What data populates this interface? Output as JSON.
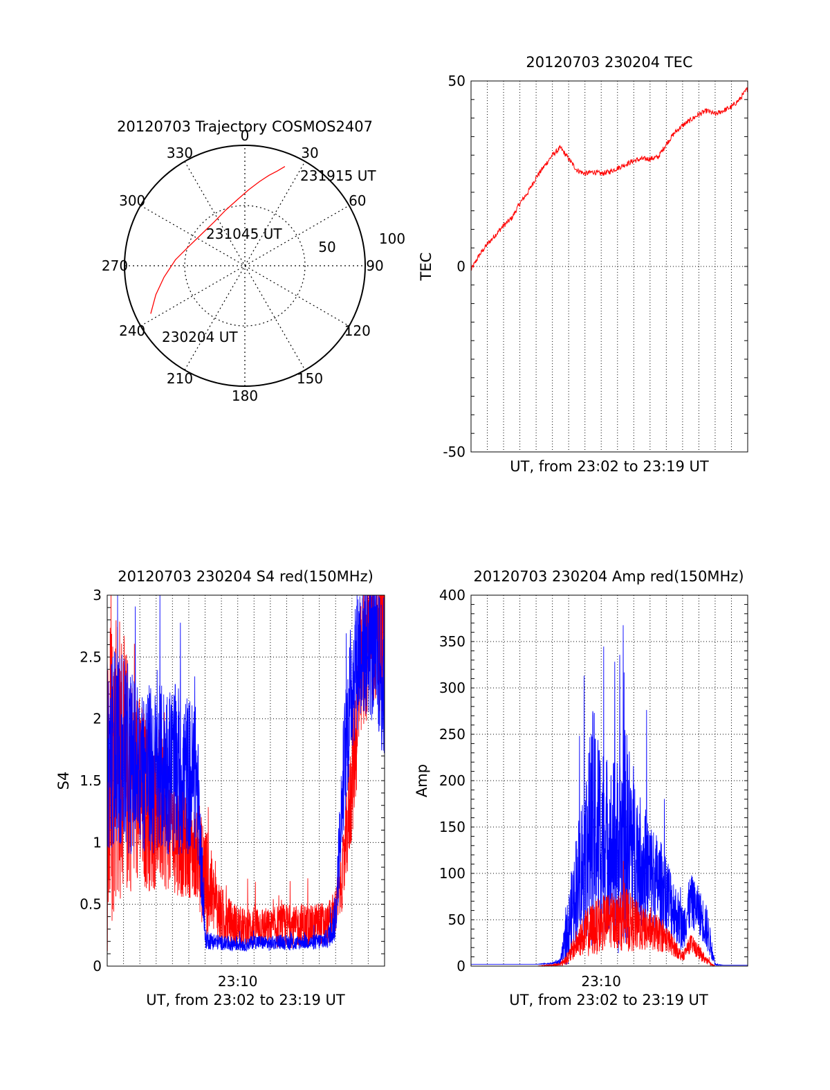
{
  "colors": {
    "red": "#ff0000",
    "blue": "#0000ff",
    "grid": "#000000"
  },
  "chart_data": [
    {
      "type": "polar",
      "title": "20120703 Trajectory COSMOS2407",
      "azimuth_labels": [
        "0",
        "30",
        "60",
        "90",
        "120",
        "150",
        "180",
        "210",
        "240",
        "270",
        "300",
        "330"
      ],
      "radial_labels": [
        "50",
        "100"
      ],
      "rmax": 90,
      "trajectory": {
        "color": "red",
        "points_az_r": [
          [
            243,
            79
          ],
          [
            252,
            70
          ],
          [
            262,
            61
          ],
          [
            275,
            52
          ],
          [
            290,
            44
          ],
          [
            307,
            40
          ],
          [
            325,
            40
          ],
          [
            341,
            44
          ],
          [
            354,
            50
          ],
          [
            3,
            57
          ],
          [
            10,
            64
          ],
          [
            15,
            70
          ],
          [
            19,
            75
          ],
          [
            22,
            80
          ]
        ]
      },
      "annotations": [
        "231915 UT",
        "231045 UT",
        "230204 UT"
      ]
    },
    {
      "type": "line",
      "title": "20120703 230204 TEC",
      "xlabel": "UT, from 23:02 to 23:19 UT",
      "ylabel": "TEC",
      "ylim": [
        -50,
        50
      ],
      "yticks": [
        "50",
        "0",
        "-50"
      ],
      "xlim_min": [
        0,
        17
      ],
      "series": [
        {
          "color": "red",
          "x": [
            0,
            0.5,
            1,
            1.5,
            2,
            2.5,
            3,
            3.5,
            4,
            4.5,
            5,
            5.5,
            6,
            6.5,
            7,
            7.5,
            8,
            8.5,
            9,
            9.5,
            10,
            10.5,
            11,
            11.5,
            12,
            12.5,
            13,
            13.5,
            14,
            14.5,
            15,
            15.5,
            16,
            16.5,
            17
          ],
          "y": [
            -1,
            3,
            6,
            8.5,
            11,
            13,
            17,
            20,
            24,
            27,
            30,
            32,
            29,
            26,
            25,
            25.5,
            25,
            25.5,
            26.5,
            27.5,
            28.5,
            29,
            29,
            29.5,
            33,
            36,
            38,
            39.5,
            41,
            42,
            41,
            42,
            43,
            45,
            48
          ]
        }
      ]
    },
    {
      "type": "line",
      "title": "20120703 230204 S4 red(150MHz)",
      "xlabel": "UT, from 23:02 to 23:19 UT",
      "ylabel": "S4",
      "ylim": [
        0,
        3
      ],
      "yticks": [
        "3",
        "2.5",
        "2",
        "1.5",
        "1",
        "0.5",
        "0"
      ],
      "xtick_label": "23:10",
      "xtick_value": 8,
      "xlim_min": [
        0,
        17
      ],
      "series": [
        {
          "color": "red",
          "x": [
            0,
            0.5,
            1,
            1.5,
            2,
            2.5,
            3,
            3.5,
            4,
            4.5,
            5,
            5.5,
            6,
            6.5,
            7,
            7.5,
            8,
            8.5,
            9,
            9.5,
            10,
            10.5,
            11,
            11.5,
            12,
            12.5,
            13,
            13.5,
            14,
            14.5,
            15,
            15.5,
            16,
            16.5,
            17
          ],
          "y": [
            1.4,
            1.8,
            1.6,
            1.5,
            1.4,
            1.3,
            1.3,
            1.2,
            1.1,
            1.0,
            0.95,
            0.9,
            0.7,
            0.55,
            0.4,
            0.35,
            0.32,
            0.3,
            0.33,
            0.32,
            0.3,
            0.32,
            0.33,
            0.31,
            0.34,
            0.32,
            0.35,
            0.33,
            0.45,
            0.8,
            1.5,
            2.3,
            2.7,
            2.8,
            2.7
          ],
          "spread": [
            1.4,
            1.3,
            1.1,
            0.9,
            0.8,
            0.7,
            0.7,
            0.6,
            0.5,
            0.45,
            0.4,
            0.35,
            0.5,
            0.3,
            0.25,
            0.2,
            0.18,
            0.16,
            0.18,
            0.17,
            0.16,
            0.18,
            0.18,
            0.17,
            0.18,
            0.17,
            0.18,
            0.17,
            0.2,
            0.3,
            0.5,
            0.6,
            0.7,
            0.7,
            0.7
          ]
        },
        {
          "color": "blue",
          "x": [
            0,
            0.5,
            1,
            1.5,
            2,
            2.5,
            3,
            3.5,
            4,
            4.5,
            5,
            5.5,
            6,
            6.5,
            7,
            7.5,
            8,
            8.5,
            9,
            9.5,
            10,
            10.5,
            11,
            11.5,
            12,
            12.5,
            13,
            13.5,
            14,
            14.5,
            15,
            15.5,
            16,
            16.5,
            17
          ],
          "y": [
            1.7,
            1.8,
            1.7,
            1.65,
            1.6,
            1.6,
            1.55,
            1.6,
            1.6,
            1.55,
            1.55,
            1.5,
            0.22,
            0.2,
            0.19,
            0.18,
            0.18,
            0.17,
            0.2,
            0.19,
            0.18,
            0.2,
            0.19,
            0.18,
            0.2,
            0.19,
            0.2,
            0.22,
            0.4,
            1.6,
            2.3,
            2.6,
            2.6,
            2.5,
            2.3
          ],
          "spread": [
            0.8,
            0.8,
            0.8,
            0.75,
            0.7,
            0.7,
            0.7,
            0.7,
            0.7,
            0.7,
            0.65,
            0.6,
            0.08,
            0.07,
            0.06,
            0.06,
            0.06,
            0.05,
            0.06,
            0.06,
            0.06,
            0.06,
            0.06,
            0.06,
            0.06,
            0.06,
            0.07,
            0.08,
            0.2,
            0.5,
            0.6,
            0.6,
            0.6,
            0.6,
            0.7
          ]
        }
      ]
    },
    {
      "type": "line",
      "title": "20120703 230204 Amp red(150MHz)",
      "xlabel": "UT, from 23:02 to 23:19 UT",
      "ylabel": "Amp",
      "ylim": [
        0,
        400
      ],
      "yticks": [
        "400",
        "350",
        "300",
        "250",
        "200",
        "150",
        "100",
        "50",
        "0"
      ],
      "xtick_label": "23:10",
      "xtick_value": 8,
      "xlim_min": [
        0,
        17
      ],
      "series": [
        {
          "color": "blue",
          "x": [
            0,
            1,
            2,
            3,
            4,
            5,
            5.5,
            6,
            6.5,
            7,
            7.5,
            8,
            8.5,
            9,
            9.5,
            10,
            10.5,
            11,
            11.5,
            12,
            12.5,
            13,
            13.5,
            14,
            14.5,
            15,
            15.5,
            16,
            17
          ],
          "y": [
            2,
            2,
            2,
            2,
            2,
            3,
            5,
            40,
            90,
            120,
            150,
            140,
            130,
            120,
            140,
            130,
            110,
            100,
            90,
            80,
            60,
            40,
            70,
            60,
            40,
            2,
            1,
            1,
            1
          ],
          "spread": [
            0,
            0,
            0,
            0,
            0,
            1,
            4,
            40,
            60,
            90,
            130,
            110,
            90,
            110,
            120,
            90,
            70,
            60,
            50,
            45,
            35,
            25,
            30,
            25,
            25,
            1,
            0,
            0,
            0
          ]
        },
        {
          "color": "red",
          "x": [
            0,
            1,
            2,
            3,
            4,
            5,
            5.5,
            6,
            6.5,
            7,
            7.5,
            8,
            8.5,
            9,
            9.5,
            10,
            10.5,
            11,
            11.5,
            12,
            12.5,
            13,
            13.5,
            14,
            14.5,
            15,
            15.5,
            16,
            17
          ],
          "y": [
            0,
            0,
            0,
            0,
            0,
            1,
            2,
            10,
            25,
            35,
            40,
            45,
            50,
            48,
            50,
            45,
            40,
            38,
            35,
            30,
            20,
            10,
            25,
            15,
            5,
            0,
            0,
            0,
            0
          ],
          "spread": [
            0,
            0,
            0,
            0,
            0,
            1,
            2,
            8,
            15,
            25,
            30,
            30,
            30,
            30,
            35,
            30,
            25,
            20,
            20,
            15,
            10,
            5,
            10,
            8,
            4,
            0,
            0,
            0,
            0
          ]
        }
      ]
    }
  ]
}
